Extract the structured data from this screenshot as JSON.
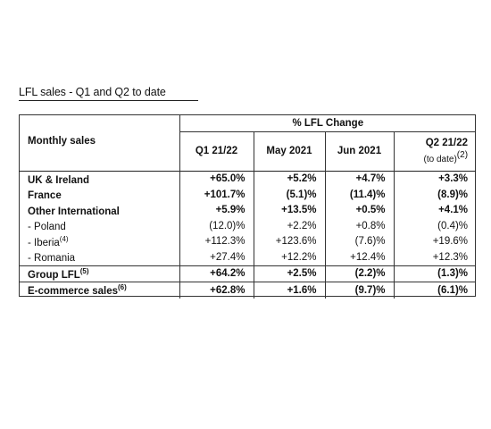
{
  "title": "LFL sales - Q1 and Q2 to date",
  "table": {
    "group_header": "% LFL Change",
    "row_header": "Monthly sales",
    "columns": [
      {
        "label": "Q1 21/22",
        "note": ""
      },
      {
        "label": "May 2021",
        "note": ""
      },
      {
        "label": "Jun 2021",
        "note": ""
      },
      {
        "label": "Q2 21/22",
        "note": "(to date)",
        "sup": "(2)"
      }
    ],
    "rows": [
      {
        "label": "UK & Ireland",
        "sup": "",
        "bold": true,
        "values": [
          "+65.0%",
          "+5.2%",
          "+4.7%",
          "+3.3%"
        ]
      },
      {
        "label": "France",
        "sup": "",
        "bold": true,
        "values": [
          "+101.7%",
          "(5.1)%",
          "(11.4)%",
          "(8.9)%"
        ]
      },
      {
        "label": "Other International",
        "sup": "",
        "bold": true,
        "values": [
          "+5.9%",
          "+13.5%",
          "+0.5%",
          "+4.1%"
        ]
      },
      {
        "label": "- Poland",
        "sup": "",
        "bold": false,
        "values": [
          "(12.0)%",
          "+2.2%",
          "+0.8%",
          "(0.4)%"
        ]
      },
      {
        "label": "- Iberia",
        "sup": "(4)",
        "bold": false,
        "values": [
          "+112.3%",
          "+123.6%",
          "(7.6)%",
          "+19.6%"
        ]
      },
      {
        "label": "- Romania",
        "sup": "",
        "bold": false,
        "values": [
          "+27.4%",
          "+12.2%",
          "+12.4%",
          "+12.3%"
        ]
      },
      {
        "label": "Group LFL",
        "sup": "(5)",
        "bold": true,
        "values": [
          "+64.2%",
          "+2.5%",
          "(2.2)%",
          "(1.3)%"
        ]
      },
      {
        "label": "E-commerce sales",
        "sup": "(6)",
        "bold": true,
        "values": [
          "+62.8%",
          "+1.6%",
          "(9.7)%",
          "(6.1)%"
        ]
      }
    ]
  }
}
